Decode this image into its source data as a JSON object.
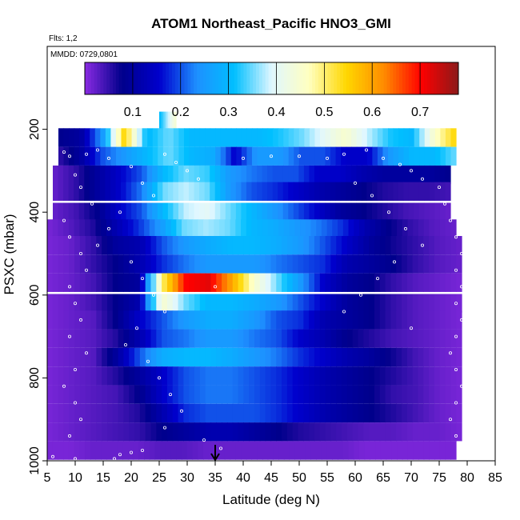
{
  "header": {
    "title": "ATOM1 Northeast_Pacific HNO3_GMI",
    "flights": "Flts: 1,2",
    "mmdd": "MMDD: 0729,0801"
  },
  "colors": {
    "stops": [
      "#8a2be2",
      "#00008b",
      "#0000cd",
      "#1e90ff",
      "#00bfff",
      "#e0f7ff",
      "#ffffc0",
      "#ffd700",
      "#ff8c00",
      "#ff0000",
      "#8b1a1a"
    ],
    "sample_points": "#ffffff",
    "arrow": "#000000"
  },
  "chart_data": {
    "type": "heatmap",
    "title": "ATOM1 Northeast_Pacific HNO3_GMI",
    "xlabel": "Latitude (deg N)",
    "ylabel": "PSXC (mbar)",
    "xlim": [
      5,
      85
    ],
    "ylim": [
      1000,
      0
    ],
    "x_ticks": [
      "5",
      "10",
      "15",
      "20",
      "25",
      "30",
      "35",
      "40",
      "45",
      "50",
      "55",
      "60",
      "65",
      "70",
      "75",
      "80",
      "85"
    ],
    "y_ticks": [
      "200",
      "400",
      "600",
      "800",
      "1000"
    ],
    "colorbar": {
      "range": [
        0,
        0.78
      ],
      "ticks": [
        "0.1",
        "0.2",
        "0.3",
        "0.4",
        "0.5",
        "0.6",
        "0.7"
      ]
    },
    "marker": {
      "type": "arrow",
      "x": 35
    },
    "levels": [
      {
        "p": 180,
        "lat": [
          25,
          28
        ],
        "v": [
          0.3,
          0.45
        ]
      },
      {
        "p": 220,
        "lat": [
          7,
          78
        ],
        "v": [
          0.08,
          0.1,
          0.25,
          0.55,
          0.3,
          0.35,
          0.3,
          0.3,
          0.3,
          0.3,
          0.32,
          0.35,
          0.4,
          0.45,
          0.38,
          0.32,
          0.3,
          0.45,
          0.55
        ]
      },
      {
        "p": 265,
        "lat": [
          7,
          78
        ],
        "v": [
          0.05,
          0.1,
          0.2,
          0.25,
          0.3,
          0.35,
          0.3,
          0.28,
          0.15,
          0.25,
          0.25,
          0.2,
          0.2,
          0.15,
          0.15,
          0.25,
          0.3,
          0.3,
          0.35
        ]
      },
      {
        "p": 310,
        "lat": [
          6,
          77
        ],
        "v": [
          0.02,
          0.05,
          0.1,
          0.15,
          0.2,
          0.3,
          0.35,
          0.33,
          0.25,
          0.22,
          0.2,
          0.2,
          0.15,
          0.15,
          0.12,
          0.1,
          0.1,
          0.1,
          0.08
        ]
      },
      {
        "p": 350,
        "lat": [
          6,
          77
        ],
        "v": [
          0.02,
          0.05,
          0.1,
          0.15,
          0.22,
          0.35,
          0.38,
          0.35,
          0.25,
          0.2,
          0.18,
          0.15,
          0.12,
          0.1,
          0.08,
          0.06,
          0.05,
          0.05,
          0.04
        ]
      },
      {
        "p": 400,
        "lat": [
          6,
          77
        ],
        "v": [
          0.02,
          0.04,
          0.08,
          0.15,
          0.2,
          0.3,
          0.38,
          0.4,
          0.35,
          0.3,
          0.25,
          0.2,
          0.15,
          0.1,
          0.08,
          0.06,
          0.04,
          0.03,
          0.02
        ]
      },
      {
        "p": 440,
        "lat": [
          5,
          78
        ],
        "v": [
          0.01,
          0.03,
          0.06,
          0.12,
          0.18,
          0.25,
          0.35,
          0.37,
          0.35,
          0.3,
          0.28,
          0.25,
          0.22,
          0.18,
          0.12,
          0.08,
          0.05,
          0.03,
          0.02
        ]
      },
      {
        "p": 480,
        "lat": [
          5,
          79
        ],
        "v": [
          0.01,
          0.02,
          0.05,
          0.1,
          0.12,
          0.2,
          0.25,
          0.28,
          0.3,
          0.3,
          0.28,
          0.25,
          0.2,
          0.15,
          0.1,
          0.07,
          0.05,
          0.03,
          0.02
        ]
      },
      {
        "p": 525,
        "lat": [
          5,
          79
        ],
        "v": [
          0.01,
          0.02,
          0.05,
          0.08,
          0.12,
          0.18,
          0.22,
          0.25,
          0.25,
          0.25,
          0.22,
          0.2,
          0.18,
          0.12,
          0.1,
          0.08,
          0.05,
          0.03,
          0.02
        ]
      },
      {
        "p": 570,
        "lat": [
          5,
          79
        ],
        "v": [
          0.01,
          0.02,
          0.04,
          0.08,
          0.1,
          0.5,
          0.7,
          0.72,
          0.6,
          0.45,
          0.35,
          0.25,
          0.15,
          0.1,
          0.08,
          0.05,
          0.03,
          0.02,
          0.01
        ]
      },
      {
        "p": 620,
        "lat": [
          5,
          79
        ],
        "v": [
          0.01,
          0.02,
          0.04,
          0.08,
          0.12,
          0.45,
          0.35,
          0.3,
          0.3,
          0.28,
          0.25,
          0.2,
          0.15,
          0.1,
          0.08,
          0.05,
          0.03,
          0.02,
          0.01
        ]
      },
      {
        "p": 660,
        "lat": [
          5,
          79
        ],
        "v": [
          0.01,
          0.02,
          0.03,
          0.08,
          0.15,
          0.2,
          0.25,
          0.28,
          0.28,
          0.25,
          0.2,
          0.18,
          0.12,
          0.1,
          0.08,
          0.05,
          0.03,
          0.02,
          0.01
        ]
      },
      {
        "p": 705,
        "lat": [
          5,
          79
        ],
        "v": [
          0.01,
          0.02,
          0.03,
          0.06,
          0.12,
          0.2,
          0.22,
          0.25,
          0.25,
          0.22,
          0.2,
          0.15,
          0.12,
          0.08,
          0.06,
          0.04,
          0.03,
          0.02,
          0.01
        ]
      },
      {
        "p": 750,
        "lat": [
          5,
          79
        ],
        "v": [
          0.01,
          0.02,
          0.03,
          0.1,
          0.2,
          0.28,
          0.3,
          0.3,
          0.28,
          0.25,
          0.22,
          0.18,
          0.15,
          0.12,
          0.1,
          0.07,
          0.04,
          0.02,
          0.01
        ]
      },
      {
        "p": 795,
        "lat": [
          5,
          79
        ],
        "v": [
          0.01,
          0.02,
          0.03,
          0.06,
          0.1,
          0.15,
          0.2,
          0.22,
          0.22,
          0.2,
          0.18,
          0.15,
          0.12,
          0.1,
          0.08,
          0.06,
          0.04,
          0.02,
          0.01
        ]
      },
      {
        "p": 840,
        "lat": [
          5,
          79
        ],
        "v": [
          0.01,
          0.02,
          0.03,
          0.04,
          0.08,
          0.15,
          0.2,
          0.22,
          0.22,
          0.2,
          0.18,
          0.15,
          0.12,
          0.1,
          0.08,
          0.05,
          0.04,
          0.02,
          0.01
        ]
      },
      {
        "p": 885,
        "lat": [
          5,
          79
        ],
        "v": [
          0.01,
          0.02,
          0.03,
          0.04,
          0.06,
          0.12,
          0.18,
          0.2,
          0.2,
          0.2,
          0.18,
          0.15,
          0.12,
          0.1,
          0.08,
          0.06,
          0.04,
          0.02,
          0.01
        ]
      },
      {
        "p": 930,
        "lat": [
          5,
          79
        ],
        "v": [
          0.01,
          0.02,
          0.03,
          0.04,
          0.05,
          0.08,
          0.1,
          0.12,
          0.12,
          0.1,
          0.08,
          0.06,
          0.05,
          0.04,
          0.03,
          0.03,
          0.02,
          0.02,
          0.01
        ]
      },
      {
        "p": 975,
        "lat": [
          5,
          78
        ],
        "v": [
          0.01,
          0.01,
          0.02,
          0.02,
          0.02,
          0.03,
          0.03,
          0.02,
          0.02,
          0.02,
          0.02,
          0.02,
          0.02,
          0.02,
          0.01,
          0.01,
          0.01,
          0.01,
          0.01
        ]
      }
    ],
    "samples": [
      [
        8,
        255
      ],
      [
        9,
        265
      ],
      [
        12,
        260
      ],
      [
        14,
        250
      ],
      [
        16,
        270
      ],
      [
        10,
        310
      ],
      [
        11,
        340
      ],
      [
        13,
        380
      ],
      [
        8,
        420
      ],
      [
        9,
        460
      ],
      [
        11,
        500
      ],
      [
        12,
        540
      ],
      [
        9,
        580
      ],
      [
        10,
        620
      ],
      [
        11,
        660
      ],
      [
        9,
        700
      ],
      [
        12,
        740
      ],
      [
        10,
        780
      ],
      [
        8,
        820
      ],
      [
        10,
        860
      ],
      [
        11,
        900
      ],
      [
        9,
        940
      ],
      [
        6,
        990
      ],
      [
        10,
        995
      ],
      [
        17,
        995
      ],
      [
        18,
        985
      ],
      [
        20,
        980
      ],
      [
        22,
        975
      ],
      [
        26,
        260
      ],
      [
        28,
        280
      ],
      [
        30,
        300
      ],
      [
        32,
        320
      ],
      [
        35,
        580
      ],
      [
        40,
        270
      ],
      [
        45,
        265
      ],
      [
        50,
        265
      ],
      [
        55,
        270
      ],
      [
        58,
        260
      ],
      [
        62,
        250
      ],
      [
        65,
        270
      ],
      [
        68,
        285
      ],
      [
        70,
        300
      ],
      [
        72,
        320
      ],
      [
        75,
        340
      ],
      [
        76,
        380
      ],
      [
        77,
        420
      ],
      [
        78,
        460
      ],
      [
        79,
        500
      ],
      [
        78,
        540
      ],
      [
        79,
        580
      ],
      [
        78,
        620
      ],
      [
        79,
        660
      ],
      [
        78,
        700
      ],
      [
        77,
        740
      ],
      [
        78,
        780
      ],
      [
        79,
        820
      ],
      [
        78,
        860
      ],
      [
        77,
        900
      ],
      [
        78,
        940
      ],
      [
        20,
        290
      ],
      [
        22,
        330
      ],
      [
        24,
        360
      ],
      [
        18,
        400
      ],
      [
        16,
        440
      ],
      [
        14,
        480
      ],
      [
        20,
        520
      ],
      [
        22,
        560
      ],
      [
        24,
        600
      ],
      [
        26,
        640
      ],
      [
        21,
        680
      ],
      [
        19,
        720
      ],
      [
        23,
        760
      ],
      [
        25,
        800
      ],
      [
        27,
        840
      ],
      [
        29,
        880
      ],
      [
        26,
        920
      ],
      [
        33,
        950
      ],
      [
        36,
        970
      ],
      [
        60,
        330
      ],
      [
        63,
        360
      ],
      [
        66,
        400
      ],
      [
        69,
        440
      ],
      [
        72,
        480
      ],
      [
        67,
        520
      ],
      [
        64,
        560
      ],
      [
        61,
        600
      ],
      [
        58,
        640
      ],
      [
        70,
        680
      ]
    ]
  }
}
